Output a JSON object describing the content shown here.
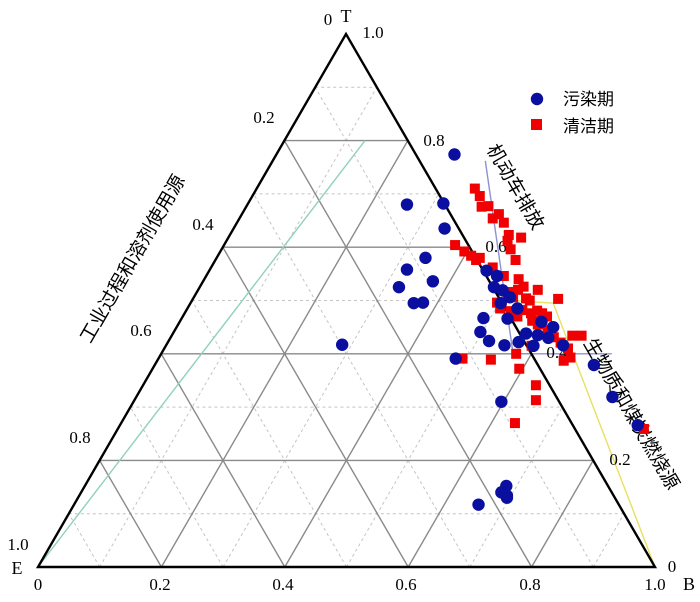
{
  "chart_data": {
    "type": "scatter",
    "chart_kind": "ternary",
    "vertices": {
      "top": "T",
      "left": "E",
      "right": "B"
    },
    "vertex_values": {
      "top_value": "1.0",
      "left_value": "1.0",
      "right_value": "1.0",
      "origin_value": "0",
      "top_zero": "0",
      "right_zero": "0"
    },
    "axis_titles": {
      "left": "工业过程和溶剂使用源",
      "right_upper": "机动车排放",
      "right_lower": "生物质和煤炭燃烧源"
    },
    "ticks": {
      "bottom": [
        "0.2",
        "0.4",
        "0.6",
        "0.8"
      ],
      "left": [
        "0.2",
        "0.4",
        "0.6",
        "0.8"
      ],
      "right": [
        "0.8",
        "0.6",
        "0.4",
        "0.2"
      ]
    },
    "grid": true,
    "legend_position": "top-right",
    "colors": {
      "pollution": "#0b0fa0",
      "clean": "#f00000"
    },
    "series": [
      {
        "name": "污染期",
        "marker": "circle",
        "color": "#0b0fa0",
        "points": [
          {
            "x": 0.675,
            "y": 0.774
          },
          {
            "x": 0.598,
            "y": 0.68
          },
          {
            "x": 0.657,
            "y": 0.682
          },
          {
            "x": 0.659,
            "y": 0.635
          },
          {
            "x": 0.628,
            "y": 0.58
          },
          {
            "x": 0.598,
            "y": 0.558
          },
          {
            "x": 0.64,
            "y": 0.536
          },
          {
            "x": 0.585,
            "y": 0.525
          },
          {
            "x": 0.624,
            "y": 0.496
          },
          {
            "x": 0.609,
            "y": 0.495
          },
          {
            "x": 0.727,
            "y": 0.556
          },
          {
            "x": 0.744,
            "y": 0.546
          },
          {
            "x": 0.739,
            "y": 0.525
          },
          {
            "x": 0.753,
            "y": 0.519
          },
          {
            "x": 0.765,
            "y": 0.506
          },
          {
            "x": 0.75,
            "y": 0.495
          },
          {
            "x": 0.777,
            "y": 0.485
          },
          {
            "x": 0.761,
            "y": 0.466
          },
          {
            "x": 0.722,
            "y": 0.467
          },
          {
            "x": 0.717,
            "y": 0.441
          },
          {
            "x": 0.731,
            "y": 0.424
          },
          {
            "x": 0.756,
            "y": 0.416
          },
          {
            "x": 0.779,
            "y": 0.422
          },
          {
            "x": 0.791,
            "y": 0.438
          },
          {
            "x": 0.803,
            "y": 0.415
          },
          {
            "x": 0.81,
            "y": 0.435
          },
          {
            "x": 0.827,
            "y": 0.43
          },
          {
            "x": 0.835,
            "y": 0.45
          },
          {
            "x": 0.816,
            "y": 0.46
          },
          {
            "x": 0.851,
            "y": 0.416
          },
          {
            "x": 0.901,
            "y": 0.379
          },
          {
            "x": 0.931,
            "y": 0.319
          },
          {
            "x": 0.972,
            "y": 0.266
          },
          {
            "x": 0.677,
            "y": 0.391
          },
          {
            "x": 0.751,
            "y": 0.31
          },
          {
            "x": 0.76,
            "y": 0.13
          },
          {
            "x": 0.759,
            "y": 0.152
          },
          {
            "x": 0.76,
            "y": 0.134
          },
          {
            "x": 0.714,
            "y": 0.117
          },
          {
            "x": 0.751,
            "y": 0.14
          },
          {
            "x": 0.493,
            "y": 0.417
          }
        ]
      },
      {
        "name": "清洁期",
        "marker": "square",
        "color": "#f00000",
        "points": [
          {
            "x": 0.708,
            "y": 0.71
          },
          {
            "x": 0.716,
            "y": 0.696
          },
          {
            "x": 0.719,
            "y": 0.676
          },
          {
            "x": 0.73,
            "y": 0.677
          },
          {
            "x": 0.737,
            "y": 0.654
          },
          {
            "x": 0.747,
            "y": 0.662
          },
          {
            "x": 0.755,
            "y": 0.646
          },
          {
            "x": 0.763,
            "y": 0.623
          },
          {
            "x": 0.761,
            "y": 0.612
          },
          {
            "x": 0.783,
            "y": 0.618
          },
          {
            "x": 0.766,
            "y": 0.596
          },
          {
            "x": 0.774,
            "y": 0.576
          },
          {
            "x": 0.676,
            "y": 0.604
          },
          {
            "x": 0.691,
            "y": 0.592
          },
          {
            "x": 0.702,
            "y": 0.584
          },
          {
            "x": 0.71,
            "y": 0.576
          },
          {
            "x": 0.716,
            "y": 0.58
          },
          {
            "x": 0.737,
            "y": 0.562
          },
          {
            "x": 0.755,
            "y": 0.546
          },
          {
            "x": 0.779,
            "y": 0.54
          },
          {
            "x": 0.787,
            "y": 0.526
          },
          {
            "x": 0.778,
            "y": 0.52
          },
          {
            "x": 0.762,
            "y": 0.516
          },
          {
            "x": 0.77,
            "y": 0.506
          },
          {
            "x": 0.761,
            "y": 0.505
          },
          {
            "x": 0.791,
            "y": 0.504
          },
          {
            "x": 0.797,
            "y": 0.5
          },
          {
            "x": 0.81,
            "y": 0.52
          },
          {
            "x": 0.843,
            "y": 0.503
          },
          {
            "x": 0.744,
            "y": 0.496
          },
          {
            "x": 0.749,
            "y": 0.485
          },
          {
            "x": 0.766,
            "y": 0.48
          },
          {
            "x": 0.777,
            "y": 0.47
          },
          {
            "x": 0.785,
            "y": 0.482
          },
          {
            "x": 0.799,
            "y": 0.476
          },
          {
            "x": 0.809,
            "y": 0.481
          },
          {
            "x": 0.817,
            "y": 0.476
          },
          {
            "x": 0.825,
            "y": 0.47
          },
          {
            "x": 0.801,
            "y": 0.462
          },
          {
            "x": 0.81,
            "y": 0.455
          },
          {
            "x": 0.826,
            "y": 0.444
          },
          {
            "x": 0.836,
            "y": 0.431
          },
          {
            "x": 0.847,
            "y": 0.421
          },
          {
            "x": 0.866,
            "y": 0.434
          },
          {
            "x": 0.881,
            "y": 0.434
          },
          {
            "x": 0.859,
            "y": 0.41
          },
          {
            "x": 0.863,
            "y": 0.393
          },
          {
            "x": 0.852,
            "y": 0.387
          },
          {
            "x": 0.8,
            "y": 0.415
          },
          {
            "x": 0.775,
            "y": 0.4
          },
          {
            "x": 0.78,
            "y": 0.372
          },
          {
            "x": 0.807,
            "y": 0.341
          },
          {
            "x": 0.807,
            "y": 0.313
          },
          {
            "x": 0.773,
            "y": 0.27
          },
          {
            "x": 0.688,
            "y": 0.391
          },
          {
            "x": 0.734,
            "y": 0.389
          },
          {
            "x": 0.982,
            "y": 0.259
          }
        ]
      }
    ],
    "reference_lines": [
      {
        "color": "#9090d0",
        "points": [
          [
            0.725,
            0.762
          ],
          [
            0.77,
            0.4
          ],
          [
            0.93,
            0.4
          ]
        ]
      },
      {
        "color": "#90d0c0",
        "points": [
          [
            0.0,
            0.0
          ],
          [
            0.53,
            0.8
          ]
        ]
      },
      {
        "color": "#e8e060",
        "points": [
          [
            0.77,
            0.5
          ],
          [
            0.835,
            0.495
          ],
          [
            1.0,
            0.0
          ]
        ]
      }
    ]
  }
}
